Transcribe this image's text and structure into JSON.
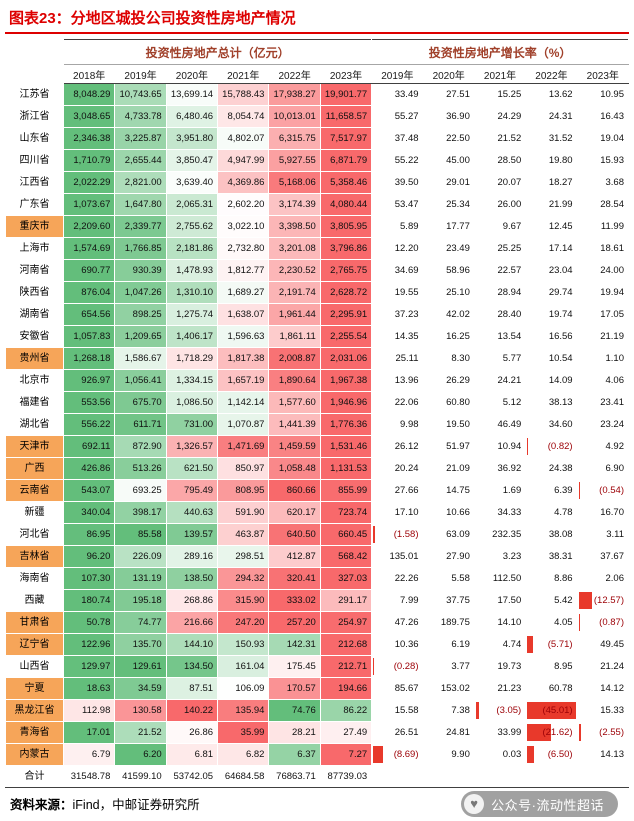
{
  "title": "图表23：分地区城投公司投资性房地产情况",
  "chart_data": {
    "type": "table",
    "title": "图表23：分地区城投公司投资性房地产情况",
    "group_headers": [
      {
        "label": "投资性房地产总计（亿元）",
        "col_span": 6
      },
      {
        "label": "投资性房地产增长率（%）",
        "col_span": 5
      }
    ],
    "total_years": [
      "2018年",
      "2019年",
      "2020年",
      "2021年",
      "2022年",
      "2023年"
    ],
    "growth_years": [
      "2019年",
      "2020年",
      "2021年",
      "2022年",
      "2023年"
    ],
    "rows": [
      {
        "region": "江苏省",
        "highlight": false,
        "totals": [
          "8,048.29",
          "10,743.65",
          "13,699.14",
          "15,788.43",
          "17,938.27",
          "19,901.77"
        ],
        "growth": [
          "33.49",
          "27.51",
          "15.25",
          "13.62",
          "10.95"
        ]
      },
      {
        "region": "浙江省",
        "highlight": false,
        "totals": [
          "3,048.65",
          "4,733.78",
          "6,480.46",
          "8,054.74",
          "10,013.01",
          "11,658.57"
        ],
        "growth": [
          "55.27",
          "36.90",
          "24.29",
          "24.31",
          "16.43"
        ]
      },
      {
        "region": "山东省",
        "highlight": false,
        "totals": [
          "2,346.38",
          "3,225.87",
          "3,951.80",
          "4,802.07",
          "6,315.75",
          "7,517.97"
        ],
        "growth": [
          "37.48",
          "22.50",
          "21.52",
          "31.52",
          "19.04"
        ]
      },
      {
        "region": "四川省",
        "highlight": false,
        "totals": [
          "1,710.79",
          "2,655.44",
          "3,850.47",
          "4,947.99",
          "5,927.55",
          "6,871.79"
        ],
        "growth": [
          "55.22",
          "45.00",
          "28.50",
          "19.80",
          "15.93"
        ]
      },
      {
        "region": "江西省",
        "highlight": false,
        "totals": [
          "2,022.29",
          "2,821.00",
          "3,639.40",
          "4,369.86",
          "5,168.06",
          "5,358.46"
        ],
        "growth": [
          "39.50",
          "29.01",
          "20.07",
          "18.27",
          "3.68"
        ]
      },
      {
        "region": "广东省",
        "highlight": false,
        "totals": [
          "1,073.67",
          "1,647.80",
          "2,065.31",
          "2,602.20",
          "3,174.39",
          "4,080.44"
        ],
        "growth": [
          "53.47",
          "25.34",
          "26.00",
          "21.99",
          "28.54"
        ]
      },
      {
        "region": "重庆市",
        "highlight": true,
        "totals": [
          "2,209.60",
          "2,339.77",
          "2,755.62",
          "3,022.10",
          "3,398.50",
          "3,805.95"
        ],
        "growth": [
          "5.89",
          "17.77",
          "9.67",
          "12.45",
          "11.99"
        ]
      },
      {
        "region": "上海市",
        "highlight": false,
        "totals": [
          "1,574.69",
          "1,766.85",
          "2,181.86",
          "2,732.80",
          "3,201.08",
          "3,796.86"
        ],
        "growth": [
          "12.20",
          "23.49",
          "25.25",
          "17.14",
          "18.61"
        ]
      },
      {
        "region": "河南省",
        "highlight": false,
        "totals": [
          "690.77",
          "930.39",
          "1,478.93",
          "1,812.77",
          "2,230.52",
          "2,765.75"
        ],
        "growth": [
          "34.69",
          "58.96",
          "22.57",
          "23.04",
          "24.00"
        ]
      },
      {
        "region": "陕西省",
        "highlight": false,
        "totals": [
          "876.04",
          "1,047.26",
          "1,310.10",
          "1,689.27",
          "2,191.74",
          "2,628.72"
        ],
        "growth": [
          "19.55",
          "25.10",
          "28.94",
          "29.74",
          "19.94"
        ]
      },
      {
        "region": "湖南省",
        "highlight": false,
        "totals": [
          "654.56",
          "898.25",
          "1,275.74",
          "1,638.07",
          "1,961.44",
          "2,295.91"
        ],
        "growth": [
          "37.23",
          "42.02",
          "28.40",
          "19.74",
          "17.05"
        ]
      },
      {
        "region": "安徽省",
        "highlight": false,
        "totals": [
          "1,057.83",
          "1,209.65",
          "1,406.17",
          "1,596.63",
          "1,861.11",
          "2,255.54"
        ],
        "growth": [
          "14.35",
          "16.25",
          "13.54",
          "16.56",
          "21.19"
        ]
      },
      {
        "region": "贵州省",
        "highlight": true,
        "totals": [
          "1,268.18",
          "1,586.67",
          "1,718.29",
          "1,817.38",
          "2,008.87",
          "2,031.06"
        ],
        "growth": [
          "25.11",
          "8.30",
          "5.77",
          "10.54",
          "1.10"
        ]
      },
      {
        "region": "北京市",
        "highlight": false,
        "totals": [
          "926.97",
          "1,056.41",
          "1,334.15",
          "1,657.19",
          "1,890.64",
          "1,967.38"
        ],
        "growth": [
          "13.96",
          "26.29",
          "24.21",
          "14.09",
          "4.06"
        ]
      },
      {
        "region": "福建省",
        "highlight": false,
        "totals": [
          "553.56",
          "675.70",
          "1,086.50",
          "1,142.14",
          "1,577.60",
          "1,946.96"
        ],
        "growth": [
          "22.06",
          "60.80",
          "5.12",
          "38.13",
          "23.41"
        ]
      },
      {
        "region": "湖北省",
        "highlight": false,
        "totals": [
          "556.22",
          "611.71",
          "731.00",
          "1,070.87",
          "1,441.39",
          "1,776.36"
        ],
        "growth": [
          "9.98",
          "19.50",
          "46.49",
          "34.60",
          "23.24"
        ]
      },
      {
        "region": "天津市",
        "highlight": true,
        "totals": [
          "692.11",
          "872.90",
          "1,326.57",
          "1,471.69",
          "1,459.59",
          "1,531.46"
        ],
        "growth": [
          "26.12",
          "51.97",
          "10.94",
          "(0.82)",
          "4.92"
        ]
      },
      {
        "region": "广西",
        "highlight": true,
        "totals": [
          "426.86",
          "513.26",
          "621.50",
          "850.97",
          "1,058.48",
          "1,131.53"
        ],
        "growth": [
          "20.24",
          "21.09",
          "36.92",
          "24.38",
          "6.90"
        ]
      },
      {
        "region": "云南省",
        "highlight": true,
        "totals": [
          "543.07",
          "693.25",
          "795.49",
          "808.95",
          "860.66",
          "855.99"
        ],
        "growth": [
          "27.66",
          "14.75",
          "1.69",
          "6.39",
          "(0.54)"
        ]
      },
      {
        "region": "新疆",
        "highlight": false,
        "totals": [
          "340.04",
          "398.17",
          "440.63",
          "591.90",
          "620.17",
          "723.74"
        ],
        "growth": [
          "17.10",
          "10.66",
          "34.33",
          "4.78",
          "16.70"
        ]
      },
      {
        "region": "河北省",
        "highlight": false,
        "totals": [
          "86.95",
          "85.58",
          "139.57",
          "463.87",
          "640.50",
          "660.45"
        ],
        "growth": [
          "(1.58)",
          "63.09",
          "232.35",
          "38.08",
          "3.11"
        ]
      },
      {
        "region": "吉林省",
        "highlight": true,
        "totals": [
          "96.20",
          "226.09",
          "289.16",
          "298.51",
          "412.87",
          "568.42"
        ],
        "growth": [
          "135.01",
          "27.90",
          "3.23",
          "38.31",
          "37.67"
        ]
      },
      {
        "region": "海南省",
        "highlight": false,
        "totals": [
          "107.30",
          "131.19",
          "138.50",
          "294.32",
          "320.41",
          "327.03"
        ],
        "growth": [
          "22.26",
          "5.58",
          "112.50",
          "8.86",
          "2.06"
        ]
      },
      {
        "region": "西藏",
        "highlight": false,
        "totals": [
          "180.74",
          "195.18",
          "268.86",
          "315.90",
          "333.02",
          "291.17"
        ],
        "growth": [
          "7.99",
          "37.75",
          "17.50",
          "5.42",
          "(12.57)"
        ]
      },
      {
        "region": "甘肃省",
        "highlight": true,
        "totals": [
          "50.78",
          "74.77",
          "216.66",
          "247.20",
          "257.20",
          "254.97"
        ],
        "growth": [
          "47.26",
          "189.75",
          "14.10",
          "4.05",
          "(0.87)"
        ]
      },
      {
        "region": "辽宁省",
        "highlight": true,
        "totals": [
          "122.96",
          "135.70",
          "144.10",
          "150.93",
          "142.31",
          "212.68"
        ],
        "growth": [
          "10.36",
          "6.19",
          "4.74",
          "(5.71)",
          "49.45"
        ]
      },
      {
        "region": "山西省",
        "highlight": false,
        "totals": [
          "129.97",
          "129.61",
          "134.50",
          "161.04",
          "175.45",
          "212.71"
        ],
        "growth": [
          "(0.28)",
          "3.77",
          "19.73",
          "8.95",
          "21.24"
        ]
      },
      {
        "region": "宁夏",
        "highlight": true,
        "totals": [
          "18.63",
          "34.59",
          "87.51",
          "106.09",
          "170.57",
          "194.66"
        ],
        "growth": [
          "85.67",
          "153.02",
          "21.23",
          "60.78",
          "14.12"
        ]
      },
      {
        "region": "黑龙江省",
        "highlight": true,
        "totals": [
          "112.98",
          "130.58",
          "140.22",
          "135.94",
          "74.76",
          "86.22"
        ],
        "growth": [
          "15.58",
          "7.38",
          "(3.05)",
          "(45.01)",
          "15.33"
        ]
      },
      {
        "region": "青海省",
        "highlight": true,
        "totals": [
          "17.01",
          "21.52",
          "26.86",
          "35.99",
          "28.21",
          "27.49"
        ],
        "growth": [
          "26.51",
          "24.81",
          "33.99",
          "(21.62)",
          "(2.55)"
        ]
      },
      {
        "region": "内蒙古",
        "highlight": true,
        "totals": [
          "6.79",
          "6.20",
          "6.81",
          "6.82",
          "6.37",
          "7.27"
        ],
        "growth": [
          "(8.69)",
          "9.90",
          "0.03",
          "(6.50)",
          "14.13"
        ]
      },
      {
        "region": "合计",
        "highlight": false,
        "is_total": true,
        "totals": [
          "31548.78",
          "41599.10",
          "53742.05",
          "64684.58",
          "76863.71",
          "87739.03"
        ],
        "growth": [
          "",
          "",
          "",
          "",
          ""
        ]
      }
    ]
  },
  "colors": {
    "title_red": "#dd0000",
    "group_header_text": "#a0402a",
    "highlight_orange": "#f6a559",
    "scale_green": "#63be7b",
    "scale_mid": "#ffffff",
    "scale_red": "#f8696b",
    "negative_bar": "#e8392b",
    "negative_text": "#9c0006"
  },
  "footer": {
    "source_label": "资料来源：",
    "source_text": "iFind，中邮证券研究所"
  },
  "watermark": {
    "icon": "heart-icon",
    "text": "公众号·流动性超话"
  }
}
